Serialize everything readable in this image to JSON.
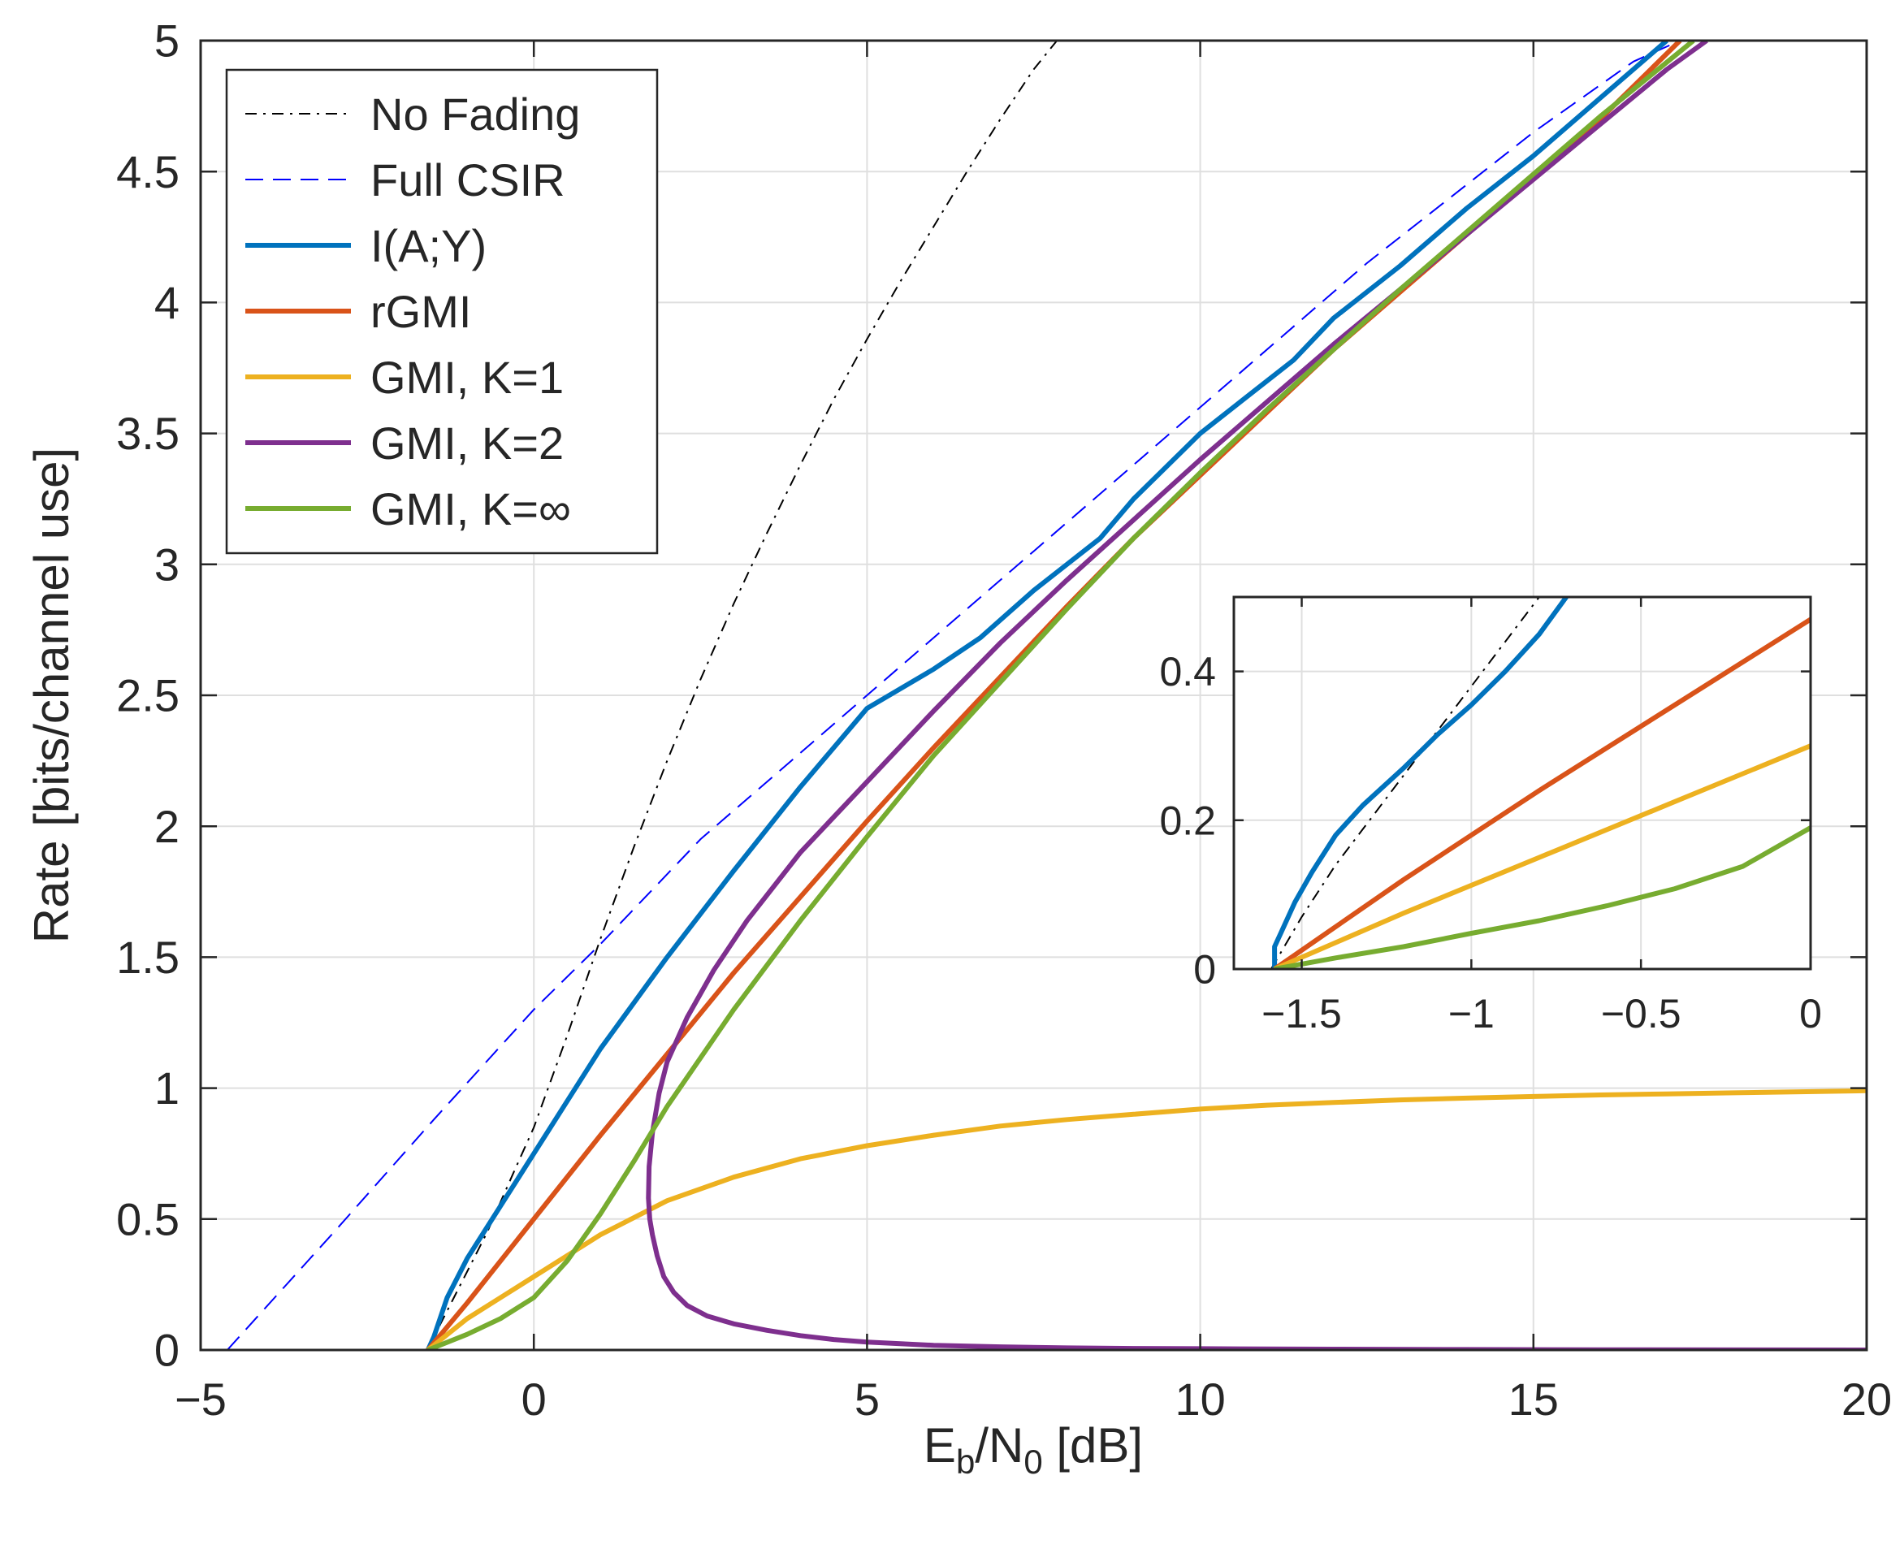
{
  "chart_data": [
    {
      "type": "line",
      "panel": "main",
      "title": "",
      "xlabel": {
        "base": "E",
        "sub1": "b",
        "mid": "/N",
        "sub2": "0",
        "tail": " [dB]"
      },
      "ylabel": "Rate [bits/channel use]",
      "xlim": [
        -5,
        20
      ],
      "ylim": [
        0,
        5
      ],
      "xticks": [
        -5,
        0,
        5,
        10,
        15,
        20
      ],
      "xtick_labels": [
        "−5",
        "0",
        "5",
        "10",
        "15",
        "20"
      ],
      "yticks": [
        0,
        0.5,
        1,
        1.5,
        2,
        2.5,
        3,
        3.5,
        4,
        4.5,
        5
      ],
      "ytick_labels": [
        "0",
        "0.5",
        "1",
        "1.5",
        "2",
        "2.5",
        "3",
        "3.5",
        "4",
        "4.5",
        "5"
      ],
      "grid": true,
      "legend_position": "top-left",
      "series": [
        {
          "name": "No Fading",
          "color": "#000000",
          "style": "dashdot",
          "width": 2,
          "x": [
            -1.59,
            -1.4,
            -1.2,
            -1.0,
            -0.7,
            -0.3,
            0.0,
            0.5,
            1.0,
            1.5,
            2.0,
            2.5,
            3.0,
            3.5,
            4.0,
            4.5,
            5.0,
            5.5,
            6.0,
            6.5,
            7.0,
            7.5,
            7.85
          ],
          "y": [
            0.0,
            0.1,
            0.2,
            0.3,
            0.45,
            0.68,
            0.85,
            1.2,
            1.57,
            1.92,
            2.25,
            2.56,
            2.85,
            3.12,
            3.38,
            3.63,
            3.86,
            4.08,
            4.29,
            4.5,
            4.7,
            4.89,
            5.0
          ]
        },
        {
          "name": "Full CSIR",
          "color": "#0000ff",
          "style": "dashed",
          "width": 2,
          "x": [
            -4.6,
            -3.0,
            -1.5,
            0.0,
            1.0,
            2.5,
            5.0,
            7.5,
            10.0,
            12.5,
            15.0,
            16.5,
            17.2
          ],
          "y": [
            0.0,
            0.45,
            0.88,
            1.3,
            1.55,
            1.95,
            2.5,
            3.05,
            3.6,
            4.15,
            4.65,
            4.92,
            5.0
          ]
        },
        {
          "name": "I(A;Y)",
          "color": "#0072bd",
          "style": "solid",
          "width": 6,
          "x": [
            -1.59,
            -1.5,
            -1.3,
            -1.0,
            -0.5,
            0.0,
            0.5,
            1.0,
            2.0,
            3.0,
            4.0,
            5.0,
            6.0,
            6.7,
            7.5,
            8.0,
            8.5,
            9.0,
            10.0,
            11.0,
            11.4,
            12.0,
            13.0,
            14.0,
            15.0,
            16.0,
            17.0
          ],
          "y": [
            0.0,
            0.05,
            0.2,
            0.35,
            0.55,
            0.75,
            0.95,
            1.15,
            1.5,
            1.83,
            2.15,
            2.45,
            2.6,
            2.72,
            2.9,
            3.0,
            3.1,
            3.25,
            3.5,
            3.7,
            3.78,
            3.94,
            4.14,
            4.36,
            4.56,
            4.78,
            5.0
          ]
        },
        {
          "name": "rGMI",
          "color": "#d95319",
          "style": "solid",
          "width": 6,
          "x": [
            -1.59,
            -1.0,
            0.0,
            1.0,
            2.0,
            3.0,
            4.0,
            5.0,
            6.0,
            7.0,
            8.0,
            9.0,
            10.0,
            11.0,
            12.0,
            13.0,
            14.0,
            15.0,
            16.0,
            17.2
          ],
          "y": [
            0.0,
            0.18,
            0.5,
            0.82,
            1.13,
            1.44,
            1.73,
            2.02,
            2.3,
            2.57,
            2.84,
            3.1,
            3.34,
            3.58,
            3.82,
            4.04,
            4.26,
            4.48,
            4.7,
            5.0
          ]
        },
        {
          "name": "GMI, K=1",
          "color": "#edb120",
          "style": "solid",
          "width": 6,
          "x": [
            -1.59,
            -1.0,
            -0.5,
            0.0,
            1.0,
            2.0,
            3.0,
            4.0,
            5.0,
            6.0,
            7.0,
            8.0,
            9.0,
            10.0,
            11.0,
            12.0,
            13.0,
            14.0,
            15.0,
            16.0,
            17.0,
            18.0,
            19.0,
            20.0
          ],
          "y": [
            0.0,
            0.12,
            0.2,
            0.28,
            0.44,
            0.57,
            0.66,
            0.73,
            0.78,
            0.82,
            0.855,
            0.88,
            0.9,
            0.92,
            0.935,
            0.945,
            0.955,
            0.962,
            0.968,
            0.974,
            0.978,
            0.982,
            0.986,
            0.99
          ]
        },
        {
          "name": "GMI, K=2",
          "color": "#7e2f8e",
          "style": "solid",
          "width": 6,
          "x": [
            20.0,
            16.0,
            14.0,
            12.0,
            10.0,
            9.0,
            8.0,
            7.0,
            6.0,
            5.0,
            4.5,
            4.0,
            3.5,
            3.0,
            2.6,
            2.3,
            2.1,
            1.95,
            1.85,
            1.78,
            1.74,
            1.72,
            1.73,
            1.78,
            1.88,
            2.0,
            2.3,
            2.7,
            3.2,
            4.0,
            5.0,
            6.0,
            7.0,
            8.0,
            9.0,
            10.0,
            11.0,
            12.0,
            13.0,
            14.0,
            15.0,
            16.0,
            17.0,
            17.6
          ],
          "y": [
            0.0,
            0.001,
            0.002,
            0.003,
            0.005,
            0.006,
            0.008,
            0.012,
            0.018,
            0.03,
            0.04,
            0.055,
            0.075,
            0.1,
            0.13,
            0.17,
            0.22,
            0.28,
            0.36,
            0.44,
            0.5,
            0.58,
            0.7,
            0.83,
            0.98,
            1.1,
            1.27,
            1.45,
            1.64,
            1.9,
            2.17,
            2.44,
            2.7,
            2.94,
            3.17,
            3.4,
            3.62,
            3.84,
            4.05,
            4.26,
            4.47,
            4.68,
            4.89,
            5.0
          ]
        },
        {
          "name": "GMI, K=∞",
          "color": "#77ac30",
          "style": "solid",
          "width": 6,
          "x": [
            -1.59,
            -1.0,
            -0.5,
            0.0,
            0.5,
            1.0,
            1.5,
            2.0,
            3.0,
            4.0,
            5.0,
            6.0,
            7.0,
            8.0,
            9.0,
            10.0,
            11.0,
            12.0,
            13.0,
            14.0,
            15.0,
            16.0,
            17.4
          ],
          "y": [
            0.0,
            0.06,
            0.12,
            0.2,
            0.34,
            0.52,
            0.72,
            0.93,
            1.3,
            1.64,
            1.96,
            2.27,
            2.55,
            2.83,
            3.1,
            3.35,
            3.59,
            3.82,
            4.05,
            4.27,
            4.49,
            4.71,
            5.0
          ]
        }
      ]
    },
    {
      "type": "line",
      "panel": "inset",
      "title": "",
      "xlabel": "",
      "ylabel": "",
      "xlim": [
        -1.7,
        0
      ],
      "ylim": [
        0,
        0.5
      ],
      "xticks": [
        -1.5,
        -1,
        -0.5,
        0
      ],
      "xtick_labels": [
        "−1.5",
        "−1",
        "−0.5",
        "0"
      ],
      "yticks": [
        0,
        0.2,
        0.4
      ],
      "ytick_labels": [
        "0",
        "0.2",
        "0.4"
      ],
      "grid": true,
      "series": [
        {
          "name": "No Fading",
          "color": "#000000",
          "style": "dashdot",
          "width": 2,
          "x": [
            -1.59,
            -1.5,
            -1.4,
            -1.3,
            -1.2,
            -1.1,
            -1.0,
            -0.9,
            -0.8
          ],
          "y": [
            0.0,
            0.07,
            0.14,
            0.2,
            0.26,
            0.32,
            0.38,
            0.44,
            0.5
          ]
        },
        {
          "name": "I(A;Y)",
          "color": "#0072bd",
          "style": "solid",
          "width": 6,
          "x": [
            -1.58,
            -1.58,
            -1.56,
            -1.52,
            -1.47,
            -1.4,
            -1.32,
            -1.2,
            -1.1,
            -1.0,
            -0.9,
            -0.8,
            -0.72
          ],
          "y": [
            0.0,
            0.03,
            0.05,
            0.09,
            0.13,
            0.18,
            0.22,
            0.27,
            0.315,
            0.355,
            0.4,
            0.45,
            0.5
          ]
        },
        {
          "name": "rGMI",
          "color": "#d95319",
          "style": "solid",
          "width": 6,
          "x": [
            -1.58,
            -1.2,
            -0.8,
            -0.4,
            0.0
          ],
          "y": [
            0.0,
            0.12,
            0.24,
            0.355,
            0.47
          ]
        },
        {
          "name": "GMI, K=1",
          "color": "#edb120",
          "style": "solid",
          "width": 6,
          "x": [
            -1.58,
            -1.2,
            -0.8,
            -0.4,
            0.0
          ],
          "y": [
            0.0,
            0.075,
            0.15,
            0.225,
            0.3
          ]
        },
        {
          "name": "GMI, K=∞",
          "color": "#77ac30",
          "style": "solid",
          "width": 6,
          "x": [
            -1.58,
            -1.4,
            -1.2,
            -1.0,
            -0.8,
            -0.6,
            -0.4,
            -0.2,
            0.0
          ],
          "y": [
            0.0,
            0.015,
            0.03,
            0.048,
            0.065,
            0.085,
            0.108,
            0.138,
            0.19
          ]
        }
      ]
    }
  ]
}
